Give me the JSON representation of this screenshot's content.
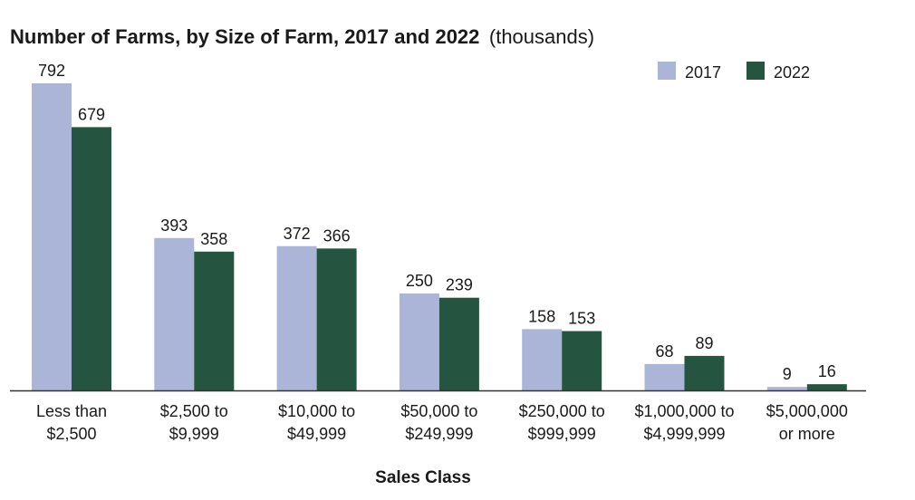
{
  "chart_data": {
    "type": "bar",
    "title": "Number of Farms, by Size of Farm, 2017 and 2022",
    "subtitle": "(thousands)",
    "xlabel": "Sales Class",
    "ylabel": "",
    "ylim": [
      0,
      792
    ],
    "grid": false,
    "legend_position": "top-right",
    "categories": [
      [
        "Less than",
        "$2,500"
      ],
      [
        "$2,500 to",
        "$9,999"
      ],
      [
        "$10,000 to",
        "$49,999"
      ],
      [
        "$50,000 to",
        "$249,999"
      ],
      [
        "$250,000 to",
        "$999,999"
      ],
      [
        "$1,000,000 to",
        "$4,999,999"
      ],
      [
        "$5,000,000",
        "or more"
      ]
    ],
    "series": [
      {
        "name": "2017",
        "color": "#abb5d8",
        "values": [
          792,
          393,
          372,
          250,
          158,
          68,
          9
        ]
      },
      {
        "name": "2022",
        "color": "#255540",
        "values": [
          679,
          358,
          366,
          239,
          153,
          89,
          16
        ]
      }
    ]
  }
}
